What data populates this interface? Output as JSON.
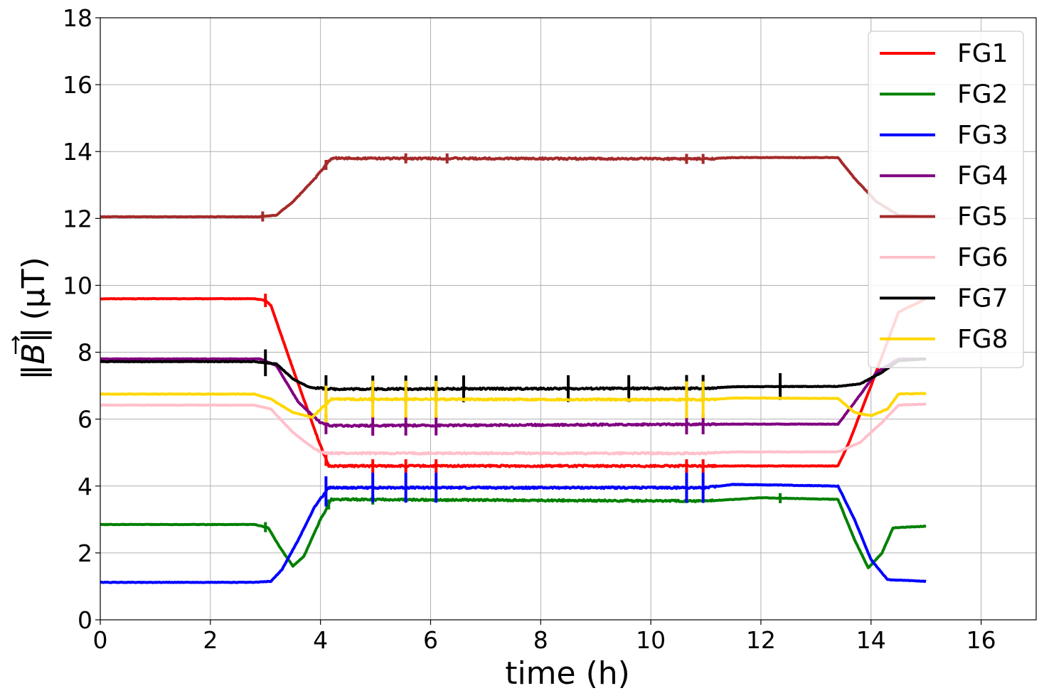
{
  "chart_data": {
    "type": "line",
    "title": "",
    "xlabel": "time (h)",
    "ylabel_parts": {
      "norm_left": "‖",
      "b_letter": "B",
      "norm_right": "‖",
      "unit": "(μT)"
    },
    "xlim": [
      0,
      17
    ],
    "ylim": [
      0,
      18
    ],
    "x_ticks": [
      0,
      2,
      4,
      6,
      8,
      10,
      12,
      14,
      16
    ],
    "y_ticks": [
      0,
      2,
      4,
      6,
      8,
      10,
      12,
      14,
      16,
      18
    ],
    "grid": true,
    "legend": "top-right",
    "series": [
      {
        "name": "FG1",
        "color": "#ff0000",
        "points": [
          [
            0,
            9.6
          ],
          [
            2.8,
            9.6
          ],
          [
            3.0,
            9.55
          ],
          [
            3.1,
            9.4
          ],
          [
            3.5,
            7.5
          ],
          [
            4.0,
            5.2
          ],
          [
            4.15,
            4.6
          ],
          [
            13.4,
            4.6
          ],
          [
            13.6,
            5.3
          ],
          [
            14.0,
            7.0
          ],
          [
            14.5,
            9.2
          ],
          [
            15.0,
            9.6
          ]
        ]
      },
      {
        "name": "FG2",
        "color": "#008000",
        "points": [
          [
            0,
            2.85
          ],
          [
            2.8,
            2.85
          ],
          [
            3.05,
            2.75
          ],
          [
            3.25,
            2.2
          ],
          [
            3.5,
            1.6
          ],
          [
            3.7,
            1.9
          ],
          [
            4.0,
            3.0
          ],
          [
            4.2,
            3.6
          ],
          [
            11.0,
            3.55
          ],
          [
            12.0,
            3.65
          ],
          [
            13.4,
            3.6
          ],
          [
            13.7,
            2.4
          ],
          [
            13.95,
            1.55
          ],
          [
            14.2,
            2.0
          ],
          [
            14.4,
            2.75
          ],
          [
            15.0,
            2.8
          ]
        ]
      },
      {
        "name": "FG3",
        "color": "#0000ff",
        "points": [
          [
            0,
            1.12
          ],
          [
            2.8,
            1.12
          ],
          [
            3.1,
            1.15
          ],
          [
            3.3,
            1.5
          ],
          [
            3.6,
            2.4
          ],
          [
            3.9,
            3.4
          ],
          [
            4.15,
            3.95
          ],
          [
            11.0,
            3.95
          ],
          [
            11.5,
            4.05
          ],
          [
            13.4,
            4.0
          ],
          [
            13.7,
            3.0
          ],
          [
            14.0,
            1.8
          ],
          [
            14.3,
            1.2
          ],
          [
            15.0,
            1.15
          ]
        ]
      },
      {
        "name": "FG4",
        "color": "#800080",
        "points": [
          [
            0,
            7.8
          ],
          [
            2.9,
            7.8
          ],
          [
            3.2,
            7.6
          ],
          [
            3.6,
            6.5
          ],
          [
            4.0,
            5.9
          ],
          [
            4.2,
            5.8
          ],
          [
            11.5,
            5.85
          ],
          [
            13.4,
            5.85
          ],
          [
            13.7,
            6.5
          ],
          [
            14.1,
            7.4
          ],
          [
            14.5,
            7.8
          ],
          [
            15.0,
            7.8
          ]
        ]
      },
      {
        "name": "FG5",
        "color": "#a52a2a",
        "points": [
          [
            0,
            12.05
          ],
          [
            2.9,
            12.05
          ],
          [
            3.2,
            12.1
          ],
          [
            3.5,
            12.5
          ],
          [
            3.9,
            13.2
          ],
          [
            4.2,
            13.8
          ],
          [
            11.0,
            13.78
          ],
          [
            11.5,
            13.82
          ],
          [
            13.4,
            13.82
          ],
          [
            13.7,
            13.2
          ],
          [
            14.1,
            12.5
          ],
          [
            14.5,
            12.1
          ],
          [
            15.0,
            12.05
          ]
        ]
      },
      {
        "name": "FG6",
        "color": "#ffc0cb",
        "points": [
          [
            0,
            6.42
          ],
          [
            2.8,
            6.42
          ],
          [
            3.1,
            6.3
          ],
          [
            3.5,
            5.6
          ],
          [
            3.9,
            5.1
          ],
          [
            4.1,
            4.98
          ],
          [
            11.0,
            4.98
          ],
          [
            11.5,
            5.02
          ],
          [
            13.4,
            5.02
          ],
          [
            13.8,
            5.3
          ],
          [
            14.2,
            5.9
          ],
          [
            14.5,
            6.42
          ],
          [
            15.0,
            6.45
          ]
        ]
      },
      {
        "name": "FG7",
        "color": "#000000",
        "points": [
          [
            0,
            7.72
          ],
          [
            2.8,
            7.72
          ],
          [
            3.2,
            7.65
          ],
          [
            3.5,
            7.2
          ],
          [
            3.8,
            6.95
          ],
          [
            4.2,
            6.9
          ],
          [
            11.0,
            6.92
          ],
          [
            11.5,
            6.97
          ],
          [
            13.4,
            6.98
          ],
          [
            13.8,
            7.05
          ],
          [
            14.2,
            7.4
          ],
          [
            14.5,
            7.75
          ],
          [
            15.0,
            7.8
          ]
        ]
      },
      {
        "name": "FG8",
        "color": "#ffd700",
        "points": [
          [
            0,
            6.75
          ],
          [
            2.8,
            6.75
          ],
          [
            3.1,
            6.6
          ],
          [
            3.5,
            6.2
          ],
          [
            3.85,
            6.05
          ],
          [
            4.0,
            6.3
          ],
          [
            4.2,
            6.6
          ],
          [
            11.0,
            6.58
          ],
          [
            11.5,
            6.63
          ],
          [
            13.4,
            6.62
          ],
          [
            13.7,
            6.2
          ],
          [
            14.0,
            6.1
          ],
          [
            14.3,
            6.3
          ],
          [
            14.5,
            6.75
          ],
          [
            15.0,
            6.77
          ]
        ]
      }
    ],
    "spikes": [
      {
        "series": "FG1",
        "x": [
          3.0,
          4.1,
          4.95,
          5.55,
          6.1,
          10.65,
          10.95
        ],
        "amplitude": 0.2
      },
      {
        "series": "FG2",
        "x": [
          3.0,
          4.15,
          4.95,
          12.35
        ],
        "amplitude": 0.15
      },
      {
        "series": "FG3",
        "x": [
          4.1,
          4.95,
          5.55,
          6.1,
          10.65,
          10.95
        ],
        "amplitude": 0.45
      },
      {
        "series": "FG4",
        "x": [
          4.1,
          4.95,
          5.55,
          6.1,
          10.65,
          10.95
        ],
        "amplitude": 0.3
      },
      {
        "series": "FG5",
        "x": [
          2.95,
          4.1,
          5.55,
          6.3,
          10.65,
          10.95
        ],
        "amplitude": 0.15
      },
      {
        "series": "FG7",
        "x": [
          3.0,
          4.1,
          4.95,
          5.55,
          6.1,
          6.6,
          8.5,
          9.6,
          10.65,
          10.95,
          12.35
        ],
        "amplitude": 0.4
      },
      {
        "series": "FG8",
        "x": [
          4.1,
          4.95,
          5.55,
          6.1,
          10.65,
          10.95
        ],
        "amplitude": 0.55
      }
    ]
  }
}
